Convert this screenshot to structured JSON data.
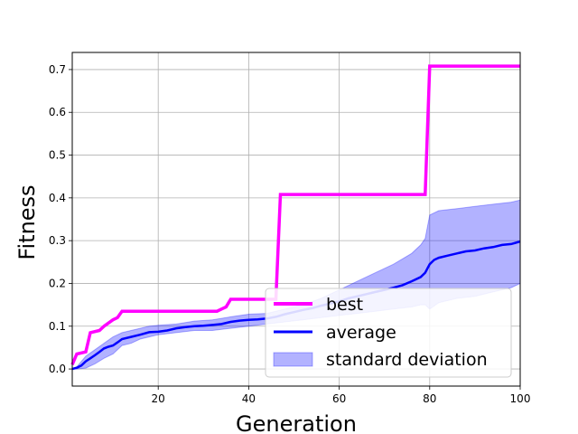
{
  "chart_data": {
    "type": "line",
    "xlabel": "Generation",
    "ylabel": "Fitness",
    "xlim": [
      1,
      100
    ],
    "ylim": [
      -0.04,
      0.74
    ],
    "xticks": [
      20,
      40,
      60,
      80,
      100
    ],
    "yticks": [
      0.0,
      0.1,
      0.2,
      0.3,
      0.4,
      0.5,
      0.6,
      0.7
    ],
    "xtick_labels": [
      "20",
      "40",
      "60",
      "80",
      "100"
    ],
    "ytick_labels": [
      "0.0",
      "0.1",
      "0.2",
      "0.3",
      "0.4",
      "0.5",
      "0.6",
      "0.7"
    ],
    "grid": true,
    "legend_position": "bottom-right",
    "series": [
      {
        "name": "best",
        "color": "#ff00ff",
        "x": [
          1,
          2,
          4,
          5,
          7,
          8,
          10,
          11,
          12,
          33,
          34,
          35,
          36,
          46,
          47,
          79,
          80,
          100
        ],
        "y": [
          0.01,
          0.035,
          0.04,
          0.085,
          0.09,
          0.1,
          0.115,
          0.12,
          0.135,
          0.135,
          0.14,
          0.145,
          0.163,
          0.163,
          0.408,
          0.408,
          0.708,
          0.708
        ]
      },
      {
        "name": "average",
        "color": "#0000ff",
        "x": [
          1,
          2,
          3,
          4,
          5,
          6,
          7,
          8,
          9,
          10,
          11,
          12,
          14,
          16,
          18,
          20,
          22,
          24,
          26,
          28,
          30,
          32,
          34,
          36,
          38,
          40,
          42,
          44,
          46,
          48,
          50,
          52,
          54,
          56,
          58,
          60,
          62,
          64,
          66,
          68,
          70,
          72,
          74,
          76,
          78,
          79,
          80,
          81,
          82,
          84,
          86,
          88,
          90,
          92,
          94,
          96,
          98,
          99,
          100
        ],
        "y": [
          0.0,
          0.003,
          0.008,
          0.018,
          0.025,
          0.032,
          0.04,
          0.048,
          0.052,
          0.055,
          0.062,
          0.07,
          0.075,
          0.08,
          0.086,
          0.087,
          0.09,
          0.095,
          0.098,
          0.1,
          0.101,
          0.103,
          0.105,
          0.11,
          0.113,
          0.115,
          0.116,
          0.118,
          0.122,
          0.128,
          0.133,
          0.138,
          0.142,
          0.148,
          0.153,
          0.158,
          0.165,
          0.17,
          0.175,
          0.18,
          0.185,
          0.19,
          0.196,
          0.205,
          0.215,
          0.225,
          0.245,
          0.255,
          0.26,
          0.265,
          0.27,
          0.275,
          0.277,
          0.282,
          0.285,
          0.29,
          0.292,
          0.295,
          0.298
        ]
      }
    ],
    "band": {
      "name": "standard deviation",
      "color": "#0000ff",
      "opacity": 0.3,
      "x": [
        1,
        2,
        4,
        6,
        8,
        10,
        12,
        14,
        16,
        18,
        20,
        24,
        28,
        32,
        36,
        40,
        44,
        48,
        52,
        56,
        60,
        64,
        68,
        72,
        76,
        78,
        79,
        80,
        82,
        86,
        90,
        94,
        98,
        100
      ],
      "upper": [
        0.0,
        0.005,
        0.03,
        0.045,
        0.06,
        0.075,
        0.085,
        0.09,
        0.095,
        0.1,
        0.102,
        0.105,
        0.112,
        0.115,
        0.122,
        0.128,
        0.13,
        0.14,
        0.15,
        0.165,
        0.185,
        0.205,
        0.225,
        0.245,
        0.27,
        0.29,
        0.305,
        0.36,
        0.37,
        0.375,
        0.38,
        0.385,
        0.39,
        0.395
      ],
      "lower": [
        0.0,
        0.0,
        0.002,
        0.012,
        0.025,
        0.035,
        0.055,
        0.06,
        0.07,
        0.075,
        0.08,
        0.085,
        0.09,
        0.09,
        0.095,
        0.1,
        0.105,
        0.11,
        0.115,
        0.12,
        0.125,
        0.13,
        0.135,
        0.14,
        0.145,
        0.15,
        0.15,
        0.14,
        0.155,
        0.165,
        0.17,
        0.18,
        0.19,
        0.2
      ]
    }
  }
}
